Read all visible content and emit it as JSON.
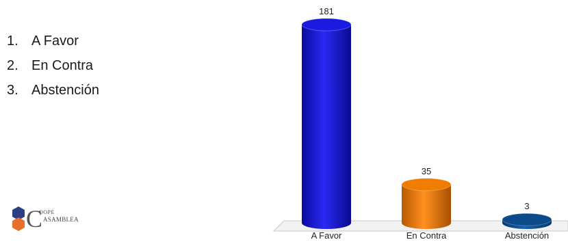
{
  "options": [
    {
      "num": "1.",
      "label": "A Favor"
    },
    {
      "num": "2.",
      "label": "En Contra"
    },
    {
      "num": "3.",
      "label": "Abstención"
    }
  ],
  "logo": {
    "big_letter": "C",
    "line1": "OOPE",
    "line2": "ASAMBLEA"
  },
  "chart_data": {
    "type": "bar",
    "categories": [
      "A Favor",
      "En Contra",
      "Abstención"
    ],
    "values": [
      181,
      35,
      3
    ],
    "data_labels": [
      "181",
      "35",
      "3"
    ],
    "colors": [
      "#1a1ae0",
      "#f07d00",
      "#0c4a8a"
    ],
    "title": "",
    "xlabel": "",
    "ylabel": "",
    "ylim": [
      0,
      181
    ],
    "grid": false,
    "legend": "none"
  }
}
